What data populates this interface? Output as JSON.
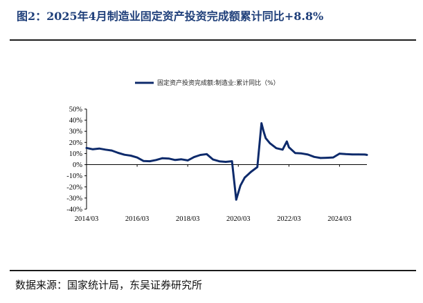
{
  "page": {
    "title": "图2：2025年4月制造业固定资产投资完成额累计同比+8.8%",
    "source": "数据来源：国家统计局，东吴证券研究所"
  },
  "chart_data": {
    "type": "line",
    "legend_position": "top",
    "grid": false,
    "series_color": "#0d2a6b",
    "y_ticks": [
      -40,
      -30,
      -20,
      -10,
      0,
      10,
      20,
      30,
      40,
      50
    ],
    "y_tick_labels": [
      "-40%",
      "-30%",
      "-20%",
      "-10%",
      "0%",
      "10%",
      "20%",
      "30%",
      "40%",
      "50%"
    ],
    "x_ticks": [
      "2014/03",
      "2016/03",
      "2018/03",
      "2020/03",
      "2022/03",
      "2024/03"
    ],
    "ylim": [
      -40,
      50
    ],
    "xlim": [
      "2014/03",
      "2025/04"
    ],
    "series": [
      {
        "name": "固定资产投资完成额:制造业:累计同比（%）",
        "x": [
          "2014/03",
          "2014/06",
          "2014/09",
          "2014/12",
          "2015/03",
          "2015/06",
          "2015/09",
          "2015/12",
          "2016/03",
          "2016/06",
          "2016/09",
          "2016/12",
          "2017/03",
          "2017/06",
          "2017/09",
          "2017/12",
          "2018/03",
          "2018/06",
          "2018/09",
          "2018/12",
          "2019/03",
          "2019/06",
          "2019/09",
          "2019/12",
          "2020/02",
          "2020/03",
          "2020/04",
          "2020/06",
          "2020/09",
          "2020/12",
          "2021/02",
          "2021/03",
          "2021/04",
          "2021/06",
          "2021/09",
          "2021/12",
          "2022/02",
          "2022/03",
          "2022/06",
          "2022/09",
          "2022/12",
          "2023/03",
          "2023/06",
          "2023/09",
          "2023/12",
          "2024/03",
          "2024/06",
          "2024/09",
          "2024/12",
          "2025/03",
          "2025/04"
        ],
        "y": [
          15.0,
          13.8,
          14.5,
          13.5,
          12.7,
          10.6,
          8.9,
          8.1,
          6.4,
          3.3,
          3.1,
          4.2,
          5.8,
          5.5,
          4.2,
          4.8,
          3.8,
          6.8,
          8.7,
          9.5,
          4.6,
          3.0,
          2.5,
          3.1,
          -31.5,
          -25.2,
          -18.8,
          -11.7,
          -6.5,
          -2.2,
          37.3,
          29.8,
          23.8,
          19.2,
          14.8,
          13.5,
          20.9,
          15.6,
          10.4,
          10.1,
          9.1,
          7.0,
          6.0,
          6.2,
          6.5,
          9.9,
          9.5,
          9.2,
          9.2,
          9.1,
          8.8
        ]
      }
    ]
  }
}
